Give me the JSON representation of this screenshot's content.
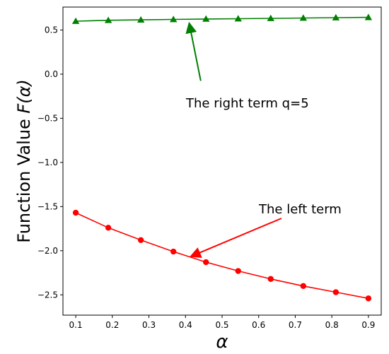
{
  "chart_data": {
    "type": "line",
    "title": "",
    "xlabel": "α",
    "ylabel_prefix": "Function Value ",
    "ylabel_math": "F(α)",
    "xlim": [
      0.065,
      0.935
    ],
    "ylim": [
      -2.73,
      0.76
    ],
    "xticks": [
      0.1,
      0.2,
      0.3,
      0.4,
      0.5,
      0.6,
      0.7,
      0.8,
      0.9
    ],
    "xtick_labels": [
      "0.1",
      "0.2",
      "0.3",
      "0.4",
      "0.5",
      "0.6",
      "0.7",
      "0.8",
      "0.9"
    ],
    "yticks": [
      0.5,
      0.0,
      -0.5,
      -1.0,
      -1.5,
      -2.0,
      -2.5
    ],
    "ytick_labels": [
      "0.5",
      "0.0",
      "−0.5",
      "−1.0",
      "−1.5",
      "−2.0",
      "−2.5"
    ],
    "grid": false,
    "x": [
      0.1,
      0.189,
      0.278,
      0.367,
      0.456,
      0.544,
      0.633,
      0.722,
      0.811,
      0.9
    ],
    "series": [
      {
        "key": "right",
        "color": "#008000",
        "marker": "triangle",
        "values": [
          0.6,
          0.61,
          0.615,
          0.62,
          0.625,
          0.628,
          0.632,
          0.636,
          0.64,
          0.643
        ]
      },
      {
        "key": "left",
        "color": "#ff0000",
        "marker": "circle",
        "values": [
          -1.57,
          -1.74,
          -1.88,
          -2.01,
          -2.13,
          -2.23,
          -2.32,
          -2.4,
          -2.47,
          -2.54
        ]
      }
    ],
    "annotations": [
      {
        "text": "The right term q=5",
        "color": "#008000",
        "target": [
          0.41,
          0.62
        ],
        "text_anchor": [
          0.49,
          -0.22
        ]
      },
      {
        "text": "The left term",
        "color": "#ff0000",
        "target": [
          0.41,
          -2.05
        ],
        "text_anchor": [
          0.64,
          -1.62
        ]
      }
    ]
  }
}
